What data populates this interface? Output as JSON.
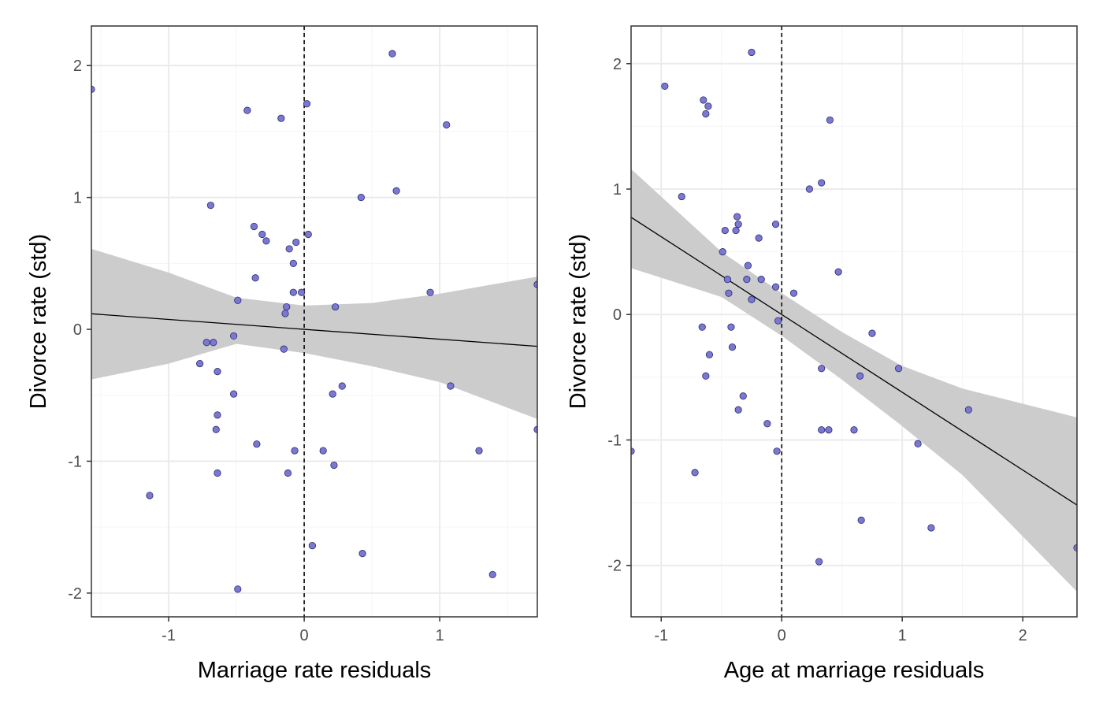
{
  "chart_data": [
    {
      "type": "scatter",
      "xlabel": "Marriage rate residuals",
      "ylabel": "Divorce rate (std)",
      "xlim": [
        -1.57,
        1.72
      ],
      "ylim": [
        -2.18,
        2.3
      ],
      "x_ticks": [
        -1,
        0,
        1
      ],
      "x_tick_labels": [
        "-1",
        "0",
        "1"
      ],
      "y_ticks": [
        -2,
        -1,
        0,
        1,
        2
      ],
      "y_tick_labels": [
        "-2",
        "-1",
        "0",
        "1",
        "2"
      ],
      "grid": true,
      "vline": 0,
      "points": [
        {
          "x": -1.57,
          "y": 1.82
        },
        {
          "x": 0.65,
          "y": 2.09
        },
        {
          "x": -0.42,
          "y": 1.66
        },
        {
          "x": 0.02,
          "y": 1.71
        },
        {
          "x": -0.17,
          "y": 1.6
        },
        {
          "x": 1.05,
          "y": 1.55
        },
        {
          "x": 0.42,
          "y": 1.0
        },
        {
          "x": 0.68,
          "y": 1.05
        },
        {
          "x": -0.69,
          "y": 0.94
        },
        {
          "x": -0.37,
          "y": 0.78
        },
        {
          "x": -0.31,
          "y": 0.72
        },
        {
          "x": -0.28,
          "y": 0.67
        },
        {
          "x": -0.06,
          "y": 0.66
        },
        {
          "x": 0.03,
          "y": 0.72
        },
        {
          "x": -0.11,
          "y": 0.61
        },
        {
          "x": -0.08,
          "y": 0.5
        },
        {
          "x": -0.36,
          "y": 0.39
        },
        {
          "x": -0.08,
          "y": 0.28
        },
        {
          "x": -0.02,
          "y": 0.28
        },
        {
          "x": 0.93,
          "y": 0.28
        },
        {
          "x": -0.49,
          "y": 0.22
        },
        {
          "x": -0.13,
          "y": 0.17
        },
        {
          "x": 0.23,
          "y": 0.17
        },
        {
          "x": -0.14,
          "y": 0.12
        },
        {
          "x": 1.72,
          "y": 0.34
        },
        {
          "x": -0.52,
          "y": -0.05
        },
        {
          "x": -0.72,
          "y": -0.1
        },
        {
          "x": -0.67,
          "y": -0.1
        },
        {
          "x": -0.15,
          "y": -0.15
        },
        {
          "x": -0.77,
          "y": -0.26
        },
        {
          "x": -0.64,
          "y": -0.32
        },
        {
          "x": 1.08,
          "y": -0.43
        },
        {
          "x": 0.28,
          "y": -0.43
        },
        {
          "x": -0.52,
          "y": -0.49
        },
        {
          "x": 0.21,
          "y": -0.49
        },
        {
          "x": -0.64,
          "y": -0.65
        },
        {
          "x": -0.65,
          "y": -0.76
        },
        {
          "x": 1.72,
          "y": -0.76
        },
        {
          "x": -0.35,
          "y": -0.87
        },
        {
          "x": -0.07,
          "y": -0.92
        },
        {
          "x": 0.14,
          "y": -0.92
        },
        {
          "x": 1.29,
          "y": -0.92
        },
        {
          "x": -0.64,
          "y": -1.09
        },
        {
          "x": -0.12,
          "y": -1.09
        },
        {
          "x": 0.22,
          "y": -1.03
        },
        {
          "x": -1.14,
          "y": -1.26
        },
        {
          "x": 0.06,
          "y": -1.64
        },
        {
          "x": 0.43,
          "y": -1.7
        },
        {
          "x": 1.39,
          "y": -1.86
        },
        {
          "x": -0.49,
          "y": -1.97
        }
      ],
      "fit": {
        "intercept": 0.0,
        "slope": -0.075
      },
      "band": [
        {
          "x": -1.57,
          "lo": -0.38,
          "hi": 0.61
        },
        {
          "x": -1.0,
          "lo": -0.26,
          "hi": 0.43
        },
        {
          "x": -0.5,
          "lo": -0.11,
          "hi": 0.24
        },
        {
          "x": 0.0,
          "lo": -0.18,
          "hi": 0.18
        },
        {
          "x": 0.5,
          "lo": -0.28,
          "hi": 0.2
        },
        {
          "x": 1.0,
          "lo": -0.4,
          "hi": 0.27
        },
        {
          "x": 1.72,
          "lo": -0.68,
          "hi": 0.4
        }
      ]
    },
    {
      "type": "scatter",
      "xlabel": "Age at marriage residuals",
      "ylabel": "Divorce rate (std)",
      "xlim": [
        -1.25,
        2.45
      ],
      "ylim": [
        -2.41,
        2.3
      ],
      "x_ticks": [
        -1,
        0,
        1,
        2
      ],
      "x_tick_labels": [
        "-1",
        "0",
        "1",
        "2"
      ],
      "y_ticks": [
        -2,
        -1,
        0,
        1,
        2
      ],
      "y_tick_labels": [
        "-2",
        "-1",
        "0",
        "1",
        "2"
      ],
      "grid": true,
      "vline": 0,
      "points": [
        {
          "x": -0.25,
          "y": 2.09
        },
        {
          "x": -0.97,
          "y": 1.82
        },
        {
          "x": -0.65,
          "y": 1.71
        },
        {
          "x": -0.61,
          "y": 1.66
        },
        {
          "x": -0.63,
          "y": 1.6
        },
        {
          "x": 0.4,
          "y": 1.55
        },
        {
          "x": 0.23,
          "y": 1.0
        },
        {
          "x": 0.33,
          "y": 1.05
        },
        {
          "x": -0.83,
          "y": 0.94
        },
        {
          "x": -0.37,
          "y": 0.78
        },
        {
          "x": -0.36,
          "y": 0.72
        },
        {
          "x": -0.05,
          "y": 0.72
        },
        {
          "x": -0.47,
          "y": 0.67
        },
        {
          "x": -0.38,
          "y": 0.67
        },
        {
          "x": -0.19,
          "y": 0.61
        },
        {
          "x": -0.49,
          "y": 0.5
        },
        {
          "x": -0.28,
          "y": 0.39
        },
        {
          "x": 0.47,
          "y": 0.34
        },
        {
          "x": -0.45,
          "y": 0.28
        },
        {
          "x": -0.29,
          "y": 0.28
        },
        {
          "x": -0.17,
          "y": 0.28
        },
        {
          "x": -0.05,
          "y": 0.22
        },
        {
          "x": -0.44,
          "y": 0.17
        },
        {
          "x": 0.1,
          "y": 0.17
        },
        {
          "x": -0.25,
          "y": 0.12
        },
        {
          "x": -0.03,
          "y": -0.05
        },
        {
          "x": -0.66,
          "y": -0.1
        },
        {
          "x": -0.42,
          "y": -0.1
        },
        {
          "x": 0.75,
          "y": -0.15
        },
        {
          "x": -0.41,
          "y": -0.26
        },
        {
          "x": -0.6,
          "y": -0.32
        },
        {
          "x": 0.33,
          "y": -0.43
        },
        {
          "x": 0.97,
          "y": -0.43
        },
        {
          "x": -0.63,
          "y": -0.49
        },
        {
          "x": 0.65,
          "y": -0.49
        },
        {
          "x": -0.32,
          "y": -0.65
        },
        {
          "x": -0.36,
          "y": -0.76
        },
        {
          "x": 1.55,
          "y": -0.76
        },
        {
          "x": -0.12,
          "y": -0.87
        },
        {
          "x": 0.33,
          "y": -0.92
        },
        {
          "x": 0.39,
          "y": -0.92
        },
        {
          "x": 0.6,
          "y": -0.92
        },
        {
          "x": 1.13,
          "y": -1.03
        },
        {
          "x": -1.25,
          "y": -1.09
        },
        {
          "x": -0.04,
          "y": -1.09
        },
        {
          "x": -0.72,
          "y": -1.26
        },
        {
          "x": 0.66,
          "y": -1.64
        },
        {
          "x": 1.24,
          "y": -1.7
        },
        {
          "x": 2.45,
          "y": -1.86
        },
        {
          "x": 0.31,
          "y": -1.97
        }
      ],
      "fit": {
        "intercept": 0.0,
        "slope": -0.62
      },
      "band": [
        {
          "x": -1.25,
          "lo": 0.37,
          "hi": 1.16
        },
        {
          "x": -0.5,
          "lo": 0.14,
          "hi": 0.5
        },
        {
          "x": 0.0,
          "lo": -0.17,
          "hi": 0.17
        },
        {
          "x": 0.5,
          "lo": -0.52,
          "hi": -0.14
        },
        {
          "x": 1.0,
          "lo": -0.89,
          "hi": -0.41
        },
        {
          "x": 1.5,
          "lo": -1.28,
          "hi": -0.59
        },
        {
          "x": 2.45,
          "lo": -2.21,
          "hi": -0.82
        }
      ]
    }
  ],
  "colors": {
    "point_fill": "#7b78d4",
    "point_stroke": "#2b2b6b",
    "band": "#cccccc",
    "fit_line": "#000000",
    "grid_major": "#ebebeb",
    "grid_minor": "#f5f5f5",
    "panel_border": "#333333",
    "vline": "#000000"
  }
}
